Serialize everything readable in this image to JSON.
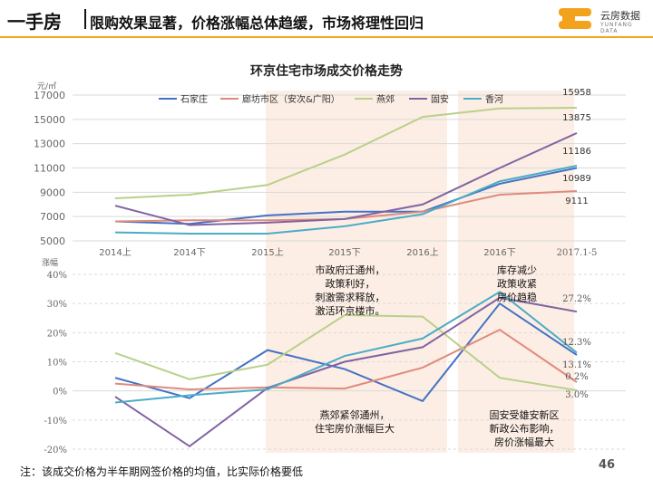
{
  "header": {
    "title": "一手房",
    "subtitle": "限购效果显著，价格涨幅总体趋缓，市场将理性回归",
    "logo_cn": "云房数据",
    "logo_en": "YUNFANG DATA"
  },
  "colors": {
    "accent": "#F2A31B",
    "highlight": "#FCEEE4",
    "grid": "#D9D9D9",
    "axis_text": "#666666"
  },
  "chart_data": {
    "type": "line",
    "title": "环京住宅市场成交价格走势",
    "categories": [
      "2014上",
      "2014下",
      "2015上",
      "2015下",
      "2016上",
      "2016下",
      "2017.1-5"
    ],
    "series": [
      {
        "name": "石家庄",
        "color": "#4472C4"
      },
      {
        "name": "廊坊市区（安次&广阳）",
        "color": "#E08A7D"
      },
      {
        "name": "燕郊",
        "color": "#B9D08A"
      },
      {
        "name": "固安",
        "color": "#8064A2"
      },
      {
        "name": "香河",
        "color": "#4BACC6"
      }
    ],
    "price": {
      "ylabel": "元/㎡",
      "ylim": [
        5000,
        17000
      ],
      "yticks": [
        5000,
        7000,
        9000,
        11000,
        13000,
        15000,
        17000
      ],
      "values": [
        [
          6600,
          6400,
          7100,
          7400,
          7400,
          9700,
          11000
        ],
        [
          6600,
          6700,
          6700,
          6800,
          7400,
          8800,
          9100
        ],
        [
          8500,
          8800,
          9600,
          12100,
          15200,
          15900,
          15958
        ],
        [
          7900,
          6300,
          6500,
          6800,
          8000,
          11000,
          13875
        ],
        [
          5700,
          5600,
          5600,
          6200,
          7200,
          9900,
          11186
        ]
      ],
      "end_labels": [
        "10989",
        "9111",
        "15958",
        "13875",
        "11186"
      ]
    },
    "growth": {
      "ylabel": "涨幅",
      "ylim": [
        -20,
        40
      ],
      "yticks": [
        -20,
        -10,
        0,
        10,
        20,
        30,
        40
      ],
      "tick_labels": [
        "-20%",
        "-10%",
        "0%",
        "10%",
        "20%",
        "30%",
        "40%"
      ],
      "values": [
        [
          4.5,
          -2.5,
          14,
          7.5,
          -3.5,
          30,
          12.3
        ],
        [
          2.5,
          0.5,
          1.2,
          0.8,
          8,
          21,
          3
        ],
        [
          13,
          4,
          9,
          26,
          25.5,
          4.5,
          0.2
        ],
        [
          -2,
          -19,
          1,
          10,
          15,
          32,
          27.2
        ],
        [
          -4,
          -1.5,
          0.5,
          12,
          18,
          34,
          13.1
        ]
      ],
      "end_labels": [
        "27.2%",
        "12.3%",
        "13.1%",
        "0.2%",
        "3.0%"
      ]
    },
    "annotations": [
      "市政府迁通州，\n政策利好，\n刺激需求释放，\n激活环京楼市。",
      "库存减少\n政策收紧\n房价趋稳",
      "燕郊紧邻通州，\n住宅房价涨幅巨大",
      "固安受雄安新区\n新政公布影响，\n房价涨幅最大"
    ]
  },
  "footnote": "注：该成交价格为半年期网签价格的均值，比实际价格要低",
  "page_number": "46"
}
